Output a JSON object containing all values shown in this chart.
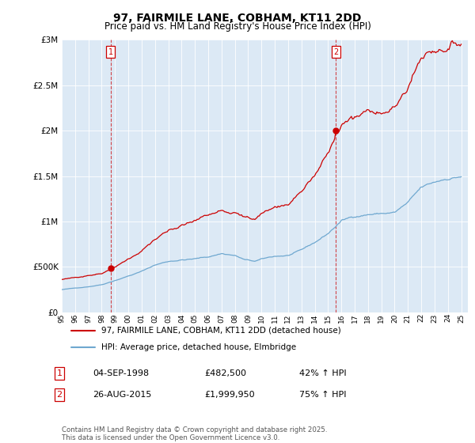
{
  "title": "97, FAIRMILE LANE, COBHAM, KT11 2DD",
  "subtitle": "Price paid vs. HM Land Registry's House Price Index (HPI)",
  "sale1_date": "04-SEP-1998",
  "sale1_price": 482500,
  "sale1_hpi": "42% ↑ HPI",
  "sale2_date": "26-AUG-2015",
  "sale2_price": 1999950,
  "sale2_hpi": "75% ↑ HPI",
  "legend_line1": "97, FAIRMILE LANE, COBHAM, KT11 2DD (detached house)",
  "legend_line2": "HPI: Average price, detached house, Elmbridge",
  "footer": "Contains HM Land Registry data © Crown copyright and database right 2025.\nThis data is licensed under the Open Government Licence v3.0.",
  "hpi_color": "#6fa8d0",
  "price_color": "#cc0000",
  "vline_color": "#cc0000",
  "chart_bg": "#dce9f5",
  "background_color": "#ffffff",
  "ylim": [
    0,
    3000000
  ],
  "xlim_start": 1995,
  "xlim_end": 2025.5
}
